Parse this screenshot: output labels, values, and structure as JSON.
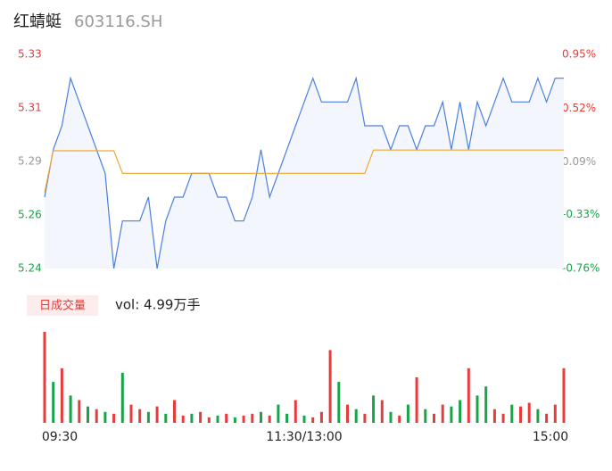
{
  "chart_data": {
    "type": "line",
    "title": "红蜻蜓",
    "subtitle": "603116.SH",
    "x": [
      0,
      4,
      8,
      12,
      16,
      20,
      24,
      28,
      32,
      36,
      40,
      44,
      48,
      52,
      56,
      60,
      64,
      68,
      72,
      76,
      80,
      84,
      88,
      92,
      96,
      100,
      104,
      108,
      112,
      116,
      120,
      124,
      128,
      132,
      136,
      140,
      144,
      148,
      152,
      156,
      160,
      164,
      168,
      172,
      176,
      180,
      184,
      188,
      192,
      196,
      200,
      204,
      208,
      212,
      216,
      220,
      224,
      228,
      232,
      236,
      240
    ],
    "xlim": [
      0,
      240
    ],
    "xticks": [
      {
        "value": 0,
        "label": "09:30"
      },
      {
        "value": 120,
        "label": "11:30/13:00"
      },
      {
        "value": 240,
        "label": "15:00"
      }
    ],
    "ylim": [
      5.24,
      5.33
    ],
    "yticks": [
      5.24,
      {
        "value": 5.2625,
        "label": "5.26"
      },
      {
        "value": 5.285,
        "label": "5.29"
      },
      {
        "value": 5.3075,
        "label": "5.31"
      },
      5.33
    ],
    "ytick_colors": [
      "#1aa44a",
      "#1aa44a",
      "#999999",
      "#e83b3b",
      "#e83b3b"
    ],
    "y2lim": [
      -0.76,
      0.95
    ],
    "y2ticks": [
      {
        "value": -0.76,
        "label": "-0.76%"
      },
      {
        "value": -0.33,
        "label": "-0.33%"
      },
      {
        "value": 0.09,
        "label": "0.09%"
      },
      {
        "value": 0.52,
        "label": "0.52%"
      },
      {
        "value": 0.95,
        "label": "0.95%"
      }
    ],
    "y2tick_colors": [
      "#1aa44a",
      "#1aa44a",
      "#999999",
      "#e83b3b",
      "#e83b3b"
    ],
    "series": [
      {
        "color": "#4a7fe0",
        "fill": "#f3f6fc",
        "values": [
          5.27,
          5.29,
          5.3,
          5.32,
          5.31,
          5.3,
          5.29,
          5.28,
          5.24,
          5.26,
          5.26,
          5.26,
          5.27,
          5.24,
          5.26,
          5.27,
          5.27,
          5.28,
          5.28,
          5.28,
          5.27,
          5.27,
          5.26,
          5.26,
          5.27,
          5.29,
          5.27,
          5.28,
          5.29,
          5.3,
          5.31,
          5.32,
          5.31,
          5.31,
          5.31,
          5.31,
          5.32,
          5.3,
          5.3,
          5.3,
          5.29,
          5.3,
          5.3,
          5.29,
          5.3,
          5.3,
          5.31,
          5.29,
          5.31,
          5.29,
          5.31,
          5.3,
          5.31,
          5.32,
          5.31,
          5.31,
          5.31,
          5.32,
          5.31,
          5.32,
          5.32
        ]
      },
      {
        "color": "#f0a830",
        "values": [
          5.272,
          5.2895,
          5.2895,
          5.2895,
          5.2895,
          5.2895,
          5.2895,
          5.2895,
          5.2895,
          5.28,
          5.28,
          5.28,
          5.28,
          5.28,
          5.28,
          5.28,
          5.28,
          5.28,
          5.28,
          5.28,
          5.28,
          5.28,
          5.28,
          5.28,
          5.28,
          5.28,
          5.28,
          5.28,
          5.28,
          5.28,
          5.28,
          5.28,
          5.28,
          5.28,
          5.28,
          5.28,
          5.28,
          5.28,
          5.2898,
          5.2898,
          5.2898,
          5.2898,
          5.2898,
          5.2898,
          5.2898,
          5.2898,
          5.2898,
          5.2898,
          5.2898,
          5.2898,
          5.2898,
          5.2898,
          5.2898,
          5.2898,
          5.2898,
          5.2898,
          5.2898,
          5.2898,
          5.2898,
          5.2898,
          5.2898
        ]
      }
    ],
    "volume": {
      "label": "日成交量",
      "text": "vol: 4.99万手",
      "ylim": [
        0,
        100
      ],
      "up_color": "#e83b3b",
      "down_color": "#1aa44a",
      "values": [
        100,
        45,
        60,
        30,
        25,
        18,
        15,
        12,
        10,
        55,
        20,
        15,
        12,
        18,
        10,
        25,
        8,
        10,
        12,
        6,
        8,
        10,
        6,
        8,
        10,
        12,
        8,
        20,
        10,
        25,
        8,
        6,
        12,
        80,
        45,
        20,
        15,
        10,
        30,
        25,
        12,
        8,
        20,
        50,
        15,
        10,
        20,
        18,
        25,
        60,
        30,
        40,
        15,
        10,
        20,
        18,
        22,
        15,
        10,
        20,
        60
      ],
      "directions": [
        "up",
        "down",
        "up",
        "down",
        "up",
        "down",
        "up",
        "down",
        "up",
        "down",
        "up",
        "up",
        "down",
        "up",
        "down",
        "up",
        "up",
        "down",
        "up",
        "up",
        "down",
        "up",
        "down",
        "up",
        "up",
        "down",
        "up",
        "down",
        "down",
        "up",
        "down",
        "up",
        "up",
        "up",
        "down",
        "up",
        "down",
        "up",
        "down",
        "up",
        "down",
        "up",
        "down",
        "up",
        "down",
        "up",
        "up",
        "down",
        "down",
        "up",
        "down",
        "down",
        "up",
        "up",
        "down",
        "up",
        "up",
        "down",
        "up",
        "up",
        "up"
      ]
    }
  }
}
